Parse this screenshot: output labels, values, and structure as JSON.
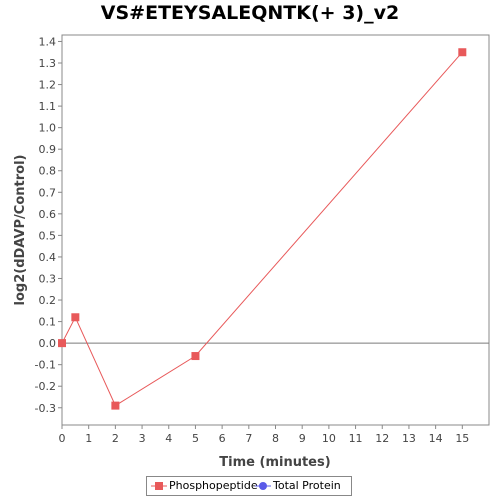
{
  "chart_data": {
    "type": "line",
    "title": "VS#ETEYSALEQNTK(+ 3)_v2",
    "xlabel": "Time (minutes)",
    "ylabel": "log2(dDAVP/Control)",
    "xlim": [
      0,
      16
    ],
    "ylim": [
      -0.38,
      1.43
    ],
    "x_ticks": [
      0,
      1,
      2,
      3,
      4,
      5,
      6,
      7,
      8,
      9,
      10,
      11,
      12,
      13,
      14,
      15
    ],
    "y_ticks": [
      -0.3,
      -0.2,
      -0.1,
      0.0,
      0.1,
      0.2,
      0.3,
      0.4,
      0.5,
      0.6,
      0.7,
      0.8,
      0.9,
      1.0,
      1.1,
      1.2,
      1.3,
      1.4
    ],
    "grid": false,
    "legend_position": "bottom",
    "series": [
      {
        "name": "Phosphopeptide",
        "color": "#e8595a",
        "marker": "square",
        "points": [
          {
            "x": 0,
            "y": 0.0
          },
          {
            "x": 0.5,
            "y": 0.12
          },
          {
            "x": 2,
            "y": -0.29
          },
          {
            "x": 5,
            "y": -0.06
          },
          {
            "x": 15,
            "y": 1.35
          }
        ]
      },
      {
        "name": "Total Protein",
        "color": "#5a5ae8",
        "marker": "circle",
        "points": []
      }
    ]
  }
}
